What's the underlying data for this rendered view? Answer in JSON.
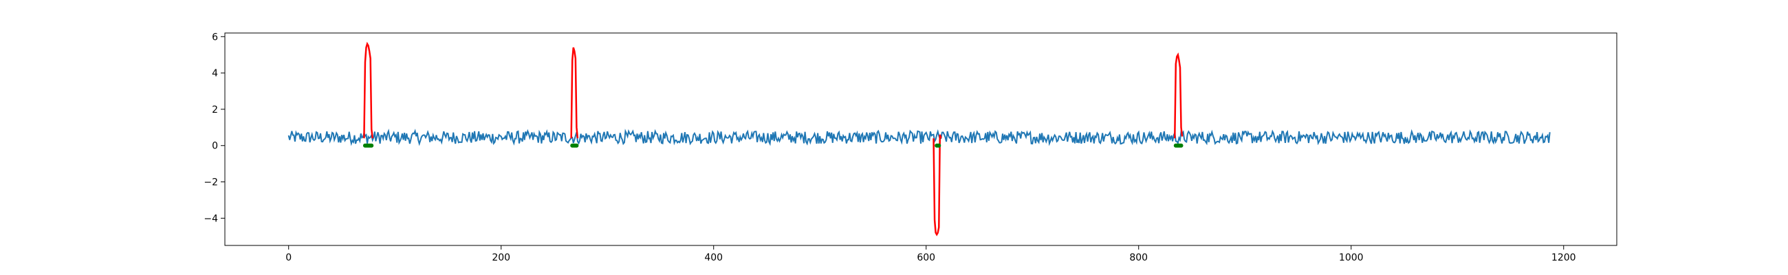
{
  "chart_data": {
    "type": "line",
    "title": "",
    "xlabel": "",
    "ylabel": "",
    "xlim": [
      -60,
      1250
    ],
    "ylim": [
      -5.5,
      6.2
    ],
    "grid": false,
    "legend": "none",
    "x_ticks": [
      0,
      200,
      400,
      600,
      800,
      1000,
      1200
    ],
    "x_tick_labels": [
      "0",
      "200",
      "400",
      "600",
      "800",
      "1000",
      "1200"
    ],
    "y_ticks": [
      -4,
      -2,
      0,
      2,
      4,
      6
    ],
    "y_tick_labels": [
      "−4",
      "−2",
      "0",
      "2",
      "4",
      "6"
    ],
    "series": [
      {
        "kind": "baseline-noise",
        "color": "#1f77b4",
        "x_start": 0,
        "x_end": 1187,
        "mean": 0.45,
        "amplitude": 0.35
      },
      {
        "kind": "anomaly-spikes",
        "color": "#ff0000",
        "spikes": [
          {
            "x": [
              71,
              72,
              73,
              74,
              75,
              76,
              77,
              78,
              79
            ],
            "y": [
              0.4,
              4.6,
              5.4,
              5.6,
              5.5,
              5.2,
              4.8,
              0.9,
              0.4
            ]
          },
          {
            "x": [
              266,
              267,
              268,
              269,
              270,
              271,
              272
            ],
            "y": [
              0.4,
              4.7,
              5.4,
              5.2,
              4.8,
              1.0,
              0.4
            ]
          },
          {
            "x": [
              607,
              608,
              609,
              610,
              611,
              612,
              613,
              614
            ],
            "y": [
              0.4,
              -4.1,
              -4.8,
              -4.9,
              -4.8,
              -4.5,
              0.6,
              0.4
            ]
          },
          {
            "x": [
              834,
              835,
              836,
              837,
              838,
              839,
              840,
              841
            ],
            "y": [
              0.4,
              4.5,
              4.9,
              5.0,
              4.7,
              4.3,
              1.0,
              0.5
            ]
          }
        ]
      },
      {
        "kind": "markers",
        "color": "#008000",
        "x": [
          72,
          73,
          74,
          75,
          76,
          77,
          78,
          267,
          268,
          269,
          270,
          271,
          610,
          611,
          612,
          835,
          836,
          837,
          838,
          839,
          840
        ],
        "y": [
          0,
          0,
          0,
          0,
          0,
          0,
          0,
          0,
          0,
          0,
          0,
          0,
          0,
          0,
          0,
          0,
          0,
          0,
          0,
          0,
          0
        ]
      }
    ]
  }
}
